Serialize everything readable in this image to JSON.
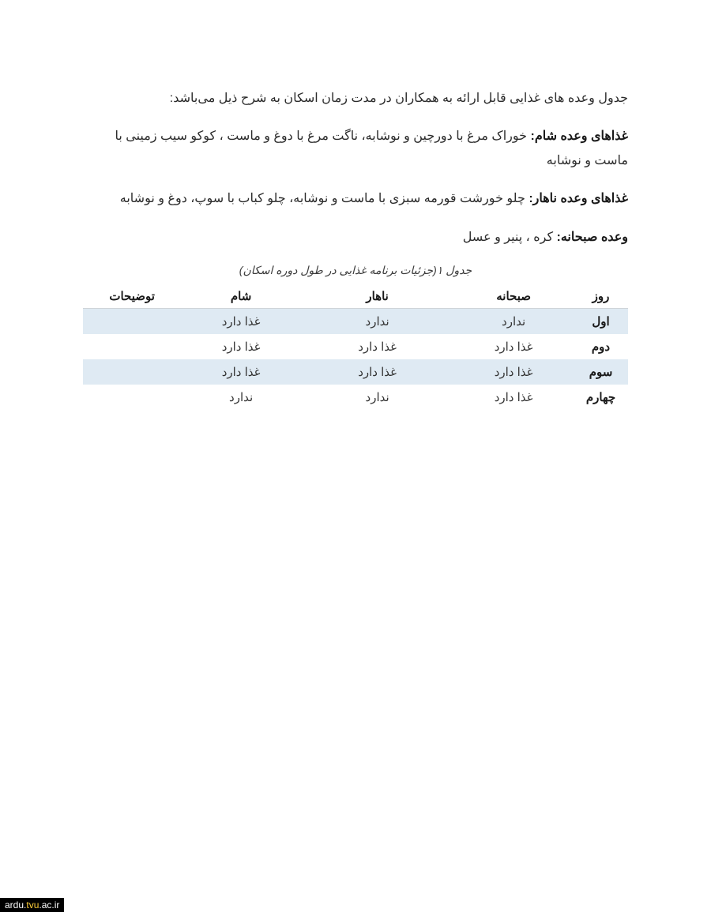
{
  "colors": {
    "page_bg": "#ffffff",
    "text": "#2b2b2b",
    "strong": "#1a1a1a",
    "band_bg": "#dfeaf3",
    "rule": "#cfd4d8",
    "footer_bg": "#000000",
    "footer_text": "#ffffff",
    "footer_highlight": "#ffcf3a"
  },
  "intro": "جدول وعده های غذایی قابل ارائه به همکاران در مدت زمان اسکان به شرح ذیل می‌باشد:",
  "dinner": {
    "label": "غذاهای وعده شام:",
    "text": " خوراک مرغ با دورچین و نوشابه، ناگت مرغ با دوغ و ماست ، کوکو سیب زمینی با ماست و نوشابه"
  },
  "lunch": {
    "label": "غذاهای وعده ناهار:",
    "text": " چلو خورشت قورمه سبزی با ماست و نوشابه، چلو کباب با سوپ، دوغ و نوشابه"
  },
  "breakfast": {
    "label": "وعده صبحانه:",
    "text": " کره ، پنیر و عسل"
  },
  "caption": "جدول ۱(جزئیات برنامه غذایی در طول دوره اسکان)",
  "table": {
    "columns": [
      "روز",
      "صبحانه",
      "ناهار",
      "شام",
      "توضیحات"
    ],
    "col_widths_pct": [
      10,
      22,
      28,
      22,
      18
    ],
    "header_fontsize_pt": 12,
    "cell_fontsize_pt": 11,
    "rows": [
      {
        "day": "اول",
        "breakfast": "ندارد",
        "lunch": "ندارد",
        "dinner": "غذا دارد",
        "notes": "",
        "banded": true
      },
      {
        "day": "دوم",
        "breakfast": "غذا دارد",
        "lunch": "غذا دارد",
        "dinner": "غذا دارد",
        "notes": "",
        "banded": false
      },
      {
        "day": "سوم",
        "breakfast": "غذا دارد",
        "lunch": "غذا دارد",
        "dinner": "غذا دارد",
        "notes": "",
        "banded": true
      },
      {
        "day": "چهارم",
        "breakfast": "غذا دارد",
        "lunch": "ندارد",
        "dinner": "ندارد",
        "notes": "",
        "banded": false
      }
    ]
  },
  "footer": {
    "prefix": "ardu.",
    "highlight": "tvu",
    "suffix": ".ac.ir"
  }
}
